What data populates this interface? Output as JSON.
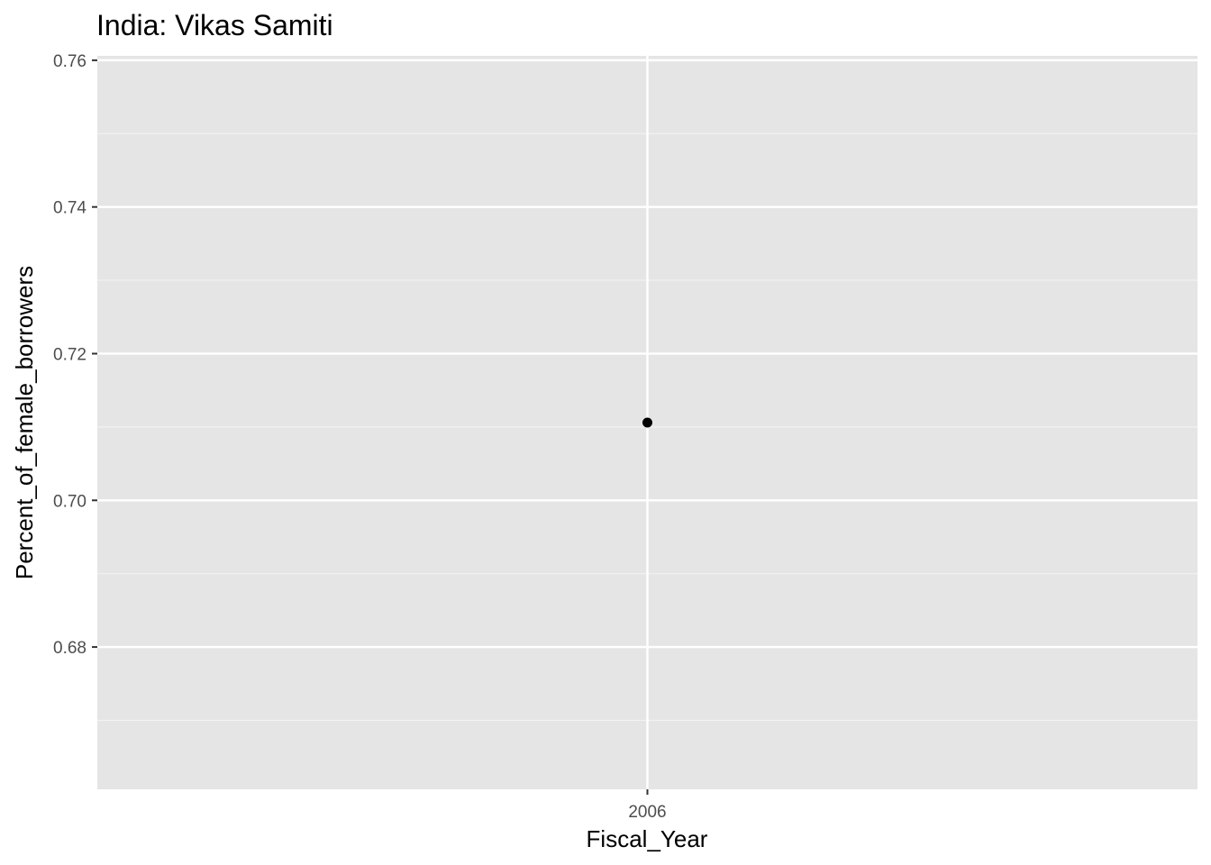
{
  "chart_data": {
    "type": "scatter",
    "title": "India:  Vikas Samiti",
    "xlabel": "Fiscal_Year",
    "ylabel": "Percent_of_female_borrowers",
    "x_categories": [
      "2006"
    ],
    "y_ticks": [
      0.68,
      0.7,
      0.72,
      0.74,
      0.76
    ],
    "y_tick_labels": [
      "0.68",
      "0.70",
      "0.72",
      "0.74",
      "0.76"
    ],
    "ylim": [
      0.6606,
      0.7606
    ],
    "grid": true,
    "series": [
      {
        "points": [
          {
            "x": "2006",
            "y": 0.7106
          }
        ]
      }
    ],
    "colors": {
      "panel_background": "#e5e5e5",
      "grid_major": "#ffffff",
      "grid_minor": "#f2f2f2",
      "point": "#000000",
      "tick_mark": "#333333"
    }
  }
}
